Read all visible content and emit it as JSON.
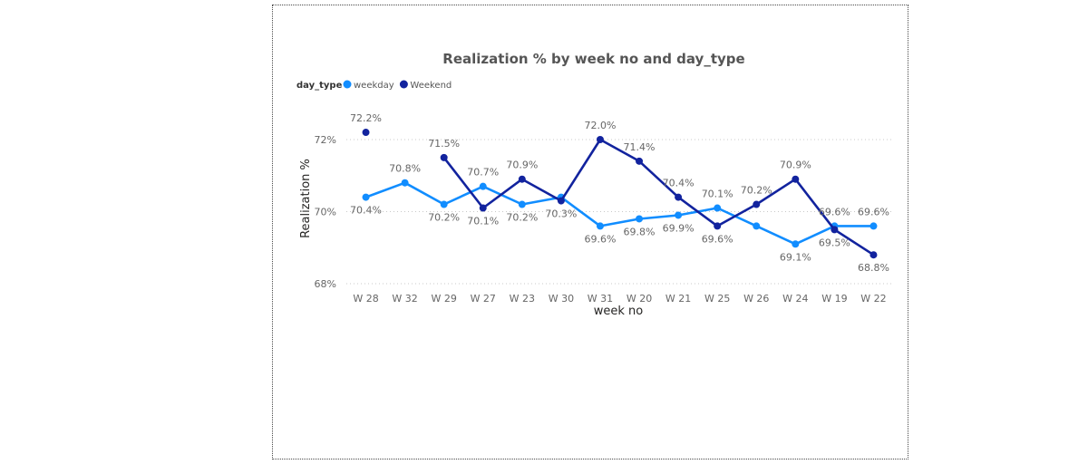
{
  "chart_data": {
    "type": "line",
    "title": "Realization % by week no and day_type",
    "legend_title": "day_type",
    "legend_position": "top-left",
    "xlabel": "week no",
    "ylabel": "Realization %",
    "ylim": [
      68,
      72
    ],
    "yticks": [
      "68%",
      "70%",
      "72%"
    ],
    "ytick_values": [
      68,
      70,
      72
    ],
    "grid": true,
    "categories": [
      "W 28",
      "W 32",
      "W 29",
      "W 27",
      "W 23",
      "W 30",
      "W 31",
      "W 20",
      "W 21",
      "W 25",
      "W 26",
      "W 24",
      "W 19",
      "W 22"
    ],
    "series": [
      {
        "name": "weekday",
        "color": "#118DFF",
        "values": [
          70.4,
          70.8,
          70.2,
          70.7,
          70.2,
          70.4,
          69.6,
          69.8,
          69.9,
          70.1,
          69.6,
          69.1,
          69.6,
          69.6
        ],
        "labels": [
          "70.4%",
          "70.8%",
          "70.2%",
          "70.7%",
          "70.2%",
          "",
          "69.6%",
          "69.8%",
          "69.9%",
          "70.1%",
          "",
          "69.1%",
          "69.6%",
          "69.6%"
        ]
      },
      {
        "name": "Weekend",
        "color": "#12239E",
        "values": [
          72.2,
          null,
          71.5,
          70.1,
          70.9,
          70.3,
          72.0,
          71.4,
          70.4,
          69.6,
          70.2,
          70.9,
          69.5,
          68.8
        ],
        "labels": [
          "72.2%",
          "",
          "71.5%",
          "70.1%",
          "70.9%",
          "70.3%",
          "72.0%",
          "71.4%",
          "70.4%",
          "69.6%",
          "70.2%",
          "70.9%",
          "69.5%",
          "68.8%"
        ]
      }
    ]
  }
}
